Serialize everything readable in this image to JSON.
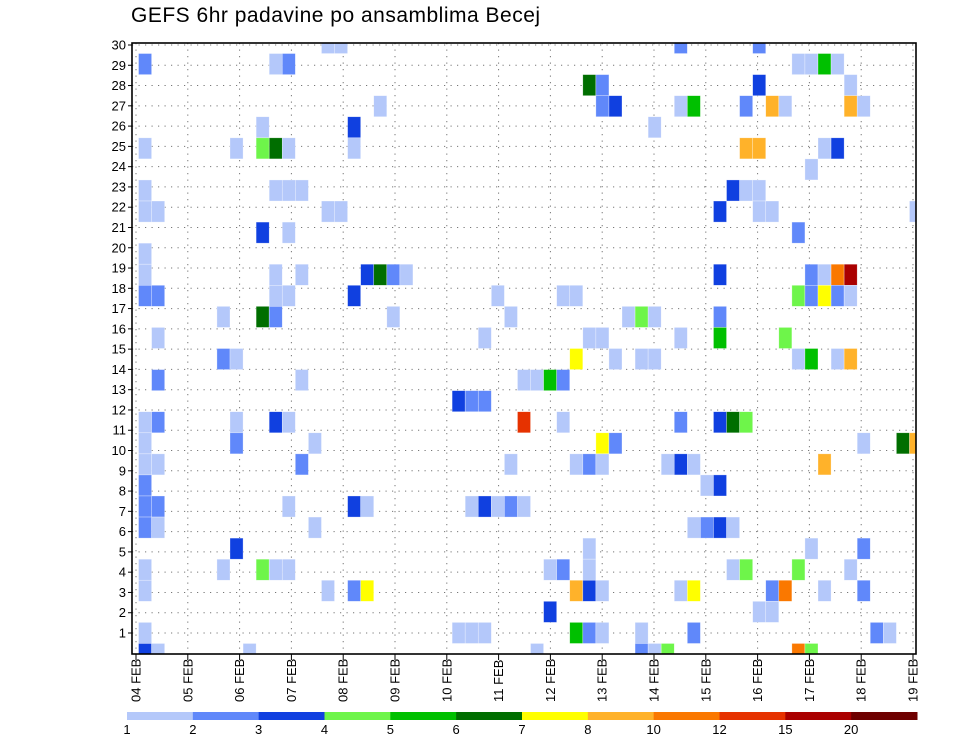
{
  "chart_data": {
    "type": "heatmap",
    "title": "GEFS 6hr padavine po ansamblima Becej",
    "xlabel": "",
    "ylabel": "",
    "x_tick_labels": [
      "04 FEB",
      "05 FEB",
      "06 FEB",
      "07 FEB",
      "08 FEB",
      "09 FEB",
      "10 FEB",
      "11 FEB",
      "12 FEB",
      "13 FEB",
      "14 FEB",
      "15 FEB",
      "16 FEB",
      "17 FEB",
      "18 FEB",
      "19 FEB"
    ],
    "x_step": "6hr",
    "x_steps_total": 60,
    "y_tick_labels": [
      "1",
      "2",
      "3",
      "4",
      "5",
      "6",
      "7",
      "8",
      "9",
      "10",
      "11",
      "12",
      "13",
      "14",
      "15",
      "16",
      "17",
      "18",
      "19",
      "20",
      "21",
      "22",
      "23",
      "24",
      "25",
      "26",
      "27",
      "28",
      "29",
      "30"
    ],
    "ylim": [
      0,
      30
    ],
    "grid": true,
    "colorbar": {
      "placement": "bottom",
      "levels": [
        1,
        2,
        3,
        4,
        5,
        6,
        7,
        8,
        10,
        12,
        15,
        20
      ],
      "labels": [
        "1",
        "2",
        "3",
        "4",
        "5",
        "6",
        "7",
        "8",
        "10",
        "12",
        "15",
        "20"
      ],
      "colors": [
        "#b4c8fa",
        "#6088fa",
        "#1040e0",
        "#6ef54a",
        "#00c000",
        "#006e00",
        "#ffff00",
        "#ffb22a",
        "#fa7800",
        "#e63200",
        "#aa0000",
        "#6e0000"
      ]
    },
    "cells_format": [
      "member",
      "step",
      "value"
    ],
    "cells": [
      [
        30,
        15,
        1
      ],
      [
        30,
        16,
        1
      ],
      [
        30,
        42,
        2
      ],
      [
        30,
        48,
        2
      ],
      [
        29,
        1,
        2
      ],
      [
        29,
        11,
        1
      ],
      [
        29,
        12,
        2
      ],
      [
        29,
        51,
        1
      ],
      [
        29,
        52,
        1
      ],
      [
        29,
        53,
        5
      ],
      [
        29,
        54,
        1
      ],
      [
        28,
        35,
        6
      ],
      [
        28,
        36,
        2
      ],
      [
        28,
        48,
        3
      ],
      [
        28,
        55,
        1
      ],
      [
        27,
        19,
        1
      ],
      [
        27,
        36,
        2
      ],
      [
        27,
        37,
        3
      ],
      [
        27,
        42,
        1
      ],
      [
        27,
        43,
        5
      ],
      [
        27,
        47,
        2
      ],
      [
        27,
        49,
        8
      ],
      [
        27,
        50,
        1
      ],
      [
        27,
        55,
        8
      ],
      [
        27,
        56,
        1
      ],
      [
        26,
        10,
        1
      ],
      [
        26,
        17,
        3
      ],
      [
        26,
        40,
        1
      ],
      [
        25,
        1,
        1
      ],
      [
        25,
        8,
        1
      ],
      [
        25,
        10,
        4
      ],
      [
        25,
        11,
        6
      ],
      [
        25,
        12,
        1
      ],
      [
        25,
        17,
        1
      ],
      [
        25,
        47,
        8
      ],
      [
        25,
        48,
        8
      ],
      [
        25,
        53,
        1
      ],
      [
        25,
        54,
        3
      ],
      [
        24,
        52,
        1
      ],
      [
        23,
        1,
        1
      ],
      [
        23,
        11,
        1
      ],
      [
        23,
        12,
        1
      ],
      [
        23,
        13,
        1
      ],
      [
        23,
        46,
        3
      ],
      [
        23,
        47,
        1
      ],
      [
        23,
        48,
        1
      ],
      [
        22,
        1,
        1
      ],
      [
        22,
        2,
        1
      ],
      [
        22,
        15,
        1
      ],
      [
        22,
        16,
        1
      ],
      [
        22,
        45,
        3
      ],
      [
        22,
        48,
        1
      ],
      [
        22,
        49,
        1
      ],
      [
        22,
        60,
        1
      ],
      [
        21,
        10,
        3
      ],
      [
        21,
        12,
        1
      ],
      [
        21,
        51,
        2
      ],
      [
        20,
        1,
        1
      ],
      [
        19,
        1,
        1
      ],
      [
        19,
        11,
        1
      ],
      [
        19,
        13,
        1
      ],
      [
        19,
        18,
        3
      ],
      [
        19,
        19,
        6
      ],
      [
        19,
        20,
        2
      ],
      [
        19,
        21,
        1
      ],
      [
        19,
        45,
        3
      ],
      [
        19,
        52,
        2
      ],
      [
        19,
        53,
        1
      ],
      [
        19,
        54,
        10
      ],
      [
        19,
        55,
        15
      ],
      [
        18,
        1,
        2
      ],
      [
        18,
        2,
        2
      ],
      [
        18,
        11,
        1
      ],
      [
        18,
        12,
        1
      ],
      [
        18,
        17,
        3
      ],
      [
        18,
        28,
        1
      ],
      [
        18,
        33,
        1
      ],
      [
        18,
        34,
        1
      ],
      [
        18,
        51,
        4
      ],
      [
        18,
        52,
        2
      ],
      [
        18,
        53,
        7
      ],
      [
        18,
        54,
        2
      ],
      [
        18,
        55,
        1
      ],
      [
        17,
        7,
        1
      ],
      [
        17,
        10,
        6
      ],
      [
        17,
        11,
        2
      ],
      [
        17,
        20,
        1
      ],
      [
        17,
        29,
        1
      ],
      [
        17,
        38,
        1
      ],
      [
        17,
        39,
        4
      ],
      [
        17,
        40,
        1
      ],
      [
        17,
        45,
        2
      ],
      [
        16,
        2,
        1
      ],
      [
        16,
        27,
        1
      ],
      [
        16,
        35,
        1
      ],
      [
        16,
        36,
        1
      ],
      [
        16,
        42,
        1
      ],
      [
        16,
        45,
        5
      ],
      [
        16,
        50,
        4
      ],
      [
        15,
        7,
        2
      ],
      [
        15,
        8,
        1
      ],
      [
        15,
        34,
        7
      ],
      [
        15,
        37,
        1
      ],
      [
        15,
        39,
        1
      ],
      [
        15,
        40,
        1
      ],
      [
        15,
        51,
        1
      ],
      [
        15,
        52,
        5
      ],
      [
        15,
        54,
        1
      ],
      [
        15,
        55,
        8
      ],
      [
        14,
        2,
        2
      ],
      [
        14,
        13,
        1
      ],
      [
        14,
        30,
        1
      ],
      [
        14,
        31,
        1
      ],
      [
        14,
        32,
        5
      ],
      [
        14,
        33,
        2
      ],
      [
        13,
        25,
        3
      ],
      [
        13,
        26,
        2
      ],
      [
        13,
        27,
        2
      ],
      [
        12,
        1,
        1
      ],
      [
        12,
        2,
        2
      ],
      [
        12,
        8,
        1
      ],
      [
        12,
        11,
        3
      ],
      [
        12,
        12,
        1
      ],
      [
        12,
        30,
        12
      ],
      [
        12,
        33,
        1
      ],
      [
        12,
        42,
        2
      ],
      [
        12,
        45,
        3
      ],
      [
        12,
        46,
        6
      ],
      [
        12,
        47,
        4
      ],
      [
        11,
        1,
        1
      ],
      [
        11,
        8,
        2
      ],
      [
        11,
        14,
        1
      ],
      [
        11,
        36,
        7
      ],
      [
        11,
        37,
        2
      ],
      [
        11,
        56,
        1
      ],
      [
        11,
        59,
        6
      ],
      [
        11,
        60,
        8
      ],
      [
        10,
        1,
        1
      ],
      [
        10,
        2,
        1
      ],
      [
        10,
        13,
        2
      ],
      [
        10,
        29,
        1
      ],
      [
        10,
        34,
        1
      ],
      [
        10,
        35,
        2
      ],
      [
        10,
        36,
        1
      ],
      [
        10,
        41,
        1
      ],
      [
        10,
        42,
        3
      ],
      [
        10,
        43,
        1
      ],
      [
        10,
        53,
        8
      ],
      [
        9,
        1,
        2
      ],
      [
        9,
        44,
        1
      ],
      [
        9,
        45,
        3
      ],
      [
        8,
        1,
        2
      ],
      [
        8,
        2,
        2
      ],
      [
        8,
        12,
        1
      ],
      [
        8,
        17,
        3
      ],
      [
        8,
        18,
        1
      ],
      [
        8,
        26,
        1
      ],
      [
        8,
        27,
        3
      ],
      [
        8,
        28,
        1
      ],
      [
        8,
        29,
        2
      ],
      [
        8,
        30,
        1
      ],
      [
        7,
        1,
        2
      ],
      [
        7,
        2,
        1
      ],
      [
        7,
        14,
        1
      ],
      [
        7,
        43,
        1
      ],
      [
        7,
        44,
        2
      ],
      [
        7,
        45,
        3
      ],
      [
        7,
        46,
        1
      ],
      [
        6,
        8,
        3
      ],
      [
        6,
        35,
        1
      ],
      [
        6,
        52,
        1
      ],
      [
        6,
        56,
        2
      ],
      [
        5,
        1,
        1
      ],
      [
        5,
        7,
        1
      ],
      [
        5,
        10,
        4
      ],
      [
        5,
        11,
        1
      ],
      [
        5,
        12,
        1
      ],
      [
        5,
        32,
        1
      ],
      [
        5,
        33,
        2
      ],
      [
        5,
        35,
        1
      ],
      [
        5,
        46,
        1
      ],
      [
        5,
        47,
        4
      ],
      [
        5,
        51,
        4
      ],
      [
        5,
        55,
        1
      ],
      [
        4,
        1,
        1
      ],
      [
        4,
        15,
        1
      ],
      [
        4,
        17,
        2
      ],
      [
        4,
        18,
        7
      ],
      [
        4,
        34,
        8
      ],
      [
        4,
        35,
        3
      ],
      [
        4,
        36,
        1
      ],
      [
        4,
        42,
        1
      ],
      [
        4,
        43,
        7
      ],
      [
        4,
        49,
        2
      ],
      [
        4,
        50,
        10
      ],
      [
        4,
        53,
        1
      ],
      [
        4,
        56,
        2
      ],
      [
        3,
        32,
        3
      ],
      [
        3,
        48,
        1
      ],
      [
        3,
        49,
        1
      ],
      [
        2,
        1,
        1
      ],
      [
        2,
        25,
        1
      ],
      [
        2,
        26,
        1
      ],
      [
        2,
        27,
        1
      ],
      [
        2,
        34,
        5
      ],
      [
        2,
        35,
        2
      ],
      [
        2,
        36,
        1
      ],
      [
        2,
        39,
        1
      ],
      [
        2,
        43,
        2
      ],
      [
        2,
        57,
        2
      ],
      [
        2,
        58,
        1
      ],
      [
        1,
        1,
        3
      ],
      [
        1,
        2,
        1
      ],
      [
        1,
        9,
        1
      ],
      [
        1,
        31,
        1
      ],
      [
        1,
        39,
        2
      ],
      [
        1,
        40,
        1
      ],
      [
        1,
        41,
        4
      ],
      [
        1,
        51,
        10
      ],
      [
        1,
        52,
        4
      ]
    ]
  }
}
